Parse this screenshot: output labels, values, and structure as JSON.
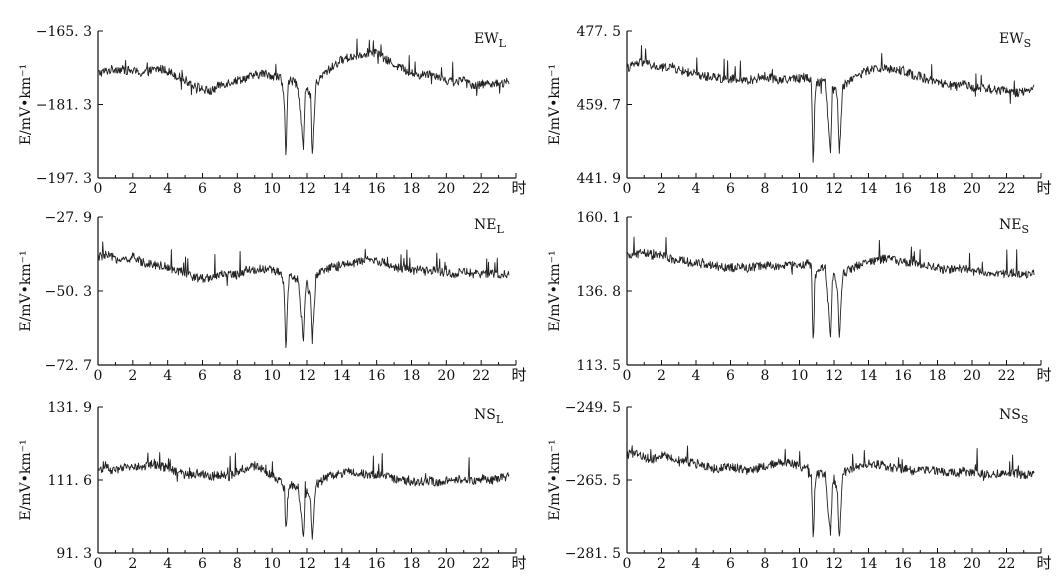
{
  "chart_data": [
    {
      "id": "ewl",
      "type": "line",
      "label": {
        "main": "EW",
        "sub": "L"
      },
      "ylabel": "E/mV•km⁻¹",
      "ylim": [
        -197.3,
        -165.3
      ],
      "yticks": [
        "−165. 3",
        "−181. 3",
        "−197. 3"
      ],
      "xlim": [
        0,
        24
      ],
      "xticks": [
        "0",
        "2",
        "4",
        "6",
        "8",
        "10",
        "12",
        "14",
        "16",
        "18",
        "20",
        "22"
      ],
      "xunit": "时",
      "series": [
        {
          "x": [
            0,
            0.5,
            1,
            1.5,
            2,
            2.5,
            3,
            3.5,
            4,
            4.5,
            5,
            5.5,
            6,
            6.5,
            7,
            7.5,
            8,
            8.5,
            9,
            9.5,
            10,
            10.5,
            10.7,
            10.8,
            10.9,
            11,
            11.5,
            11.8,
            11.9,
            12,
            12.2,
            12.3,
            12.5,
            13,
            13.5,
            14,
            14.5,
            15,
            15.5,
            16,
            16.5,
            17,
            17.5,
            18,
            18.5,
            19,
            19.5,
            20,
            20.5,
            21,
            21.5,
            22,
            22.5,
            23,
            23.5
          ],
          "y": [
            -174.5,
            -174,
            -173.5,
            -173.8,
            -174,
            -174.5,
            -174,
            -173.5,
            -174,
            -175,
            -176,
            -177,
            -178,
            -178.5,
            -177,
            -176.5,
            -176,
            -175.5,
            -175,
            -174.5,
            -175,
            -175.5,
            -180,
            -193,
            -178,
            -176,
            -177,
            -191,
            -179,
            -178,
            -180,
            -193,
            -177,
            -174.5,
            -173,
            -171.5,
            -171,
            -170.5,
            -170,
            -170,
            -171.5,
            -172.5,
            -173.5,
            -174.5,
            -175,
            -174.5,
            -175,
            -176,
            -176.5,
            -176,
            -177,
            -177,
            -176.5,
            -177,
            -176.5
          ]
        }
      ]
    },
    {
      "id": "ews",
      "type": "line",
      "label": {
        "main": "EW",
        "sub": "S"
      },
      "ylabel": "E/mV•km⁻¹",
      "ylim": [
        441.9,
        477.5
      ],
      "yticks": [
        "477. 5",
        "459. 7",
        "441. 9"
      ],
      "xlim": [
        0,
        24
      ],
      "xticks": [
        "0",
        "2",
        "4",
        "6",
        "8",
        "10",
        "12",
        "14",
        "16",
        "18",
        "20",
        "22"
      ],
      "xunit": "时",
      "series": [
        {
          "x": [
            0,
            0.5,
            1,
            1.5,
            2,
            2.5,
            3,
            3.5,
            4,
            4.5,
            5,
            5.5,
            6,
            6.5,
            7,
            7.5,
            8,
            8.5,
            9,
            9.5,
            10,
            10.5,
            10.7,
            10.8,
            10.9,
            11,
            11.5,
            11.8,
            11.9,
            12,
            12.2,
            12.3,
            12.5,
            13,
            13.5,
            14,
            14.5,
            15,
            15.5,
            16,
            16.5,
            17,
            17.5,
            18,
            18.5,
            19,
            19.5,
            20,
            20.5,
            21,
            21.5,
            22,
            22.5,
            23,
            23.5
          ],
          "y": [
            468.5,
            469.5,
            470,
            469,
            468.5,
            469,
            468,
            467.5,
            467,
            466.5,
            466.5,
            466,
            466,
            465.5,
            465.5,
            466,
            466.5,
            466,
            465.5,
            466,
            466,
            466.5,
            465,
            444,
            462,
            465,
            465.5,
            448,
            462,
            464,
            462,
            447,
            464,
            466,
            467,
            468,
            468.5,
            468.5,
            468,
            468,
            467,
            466.5,
            465.5,
            465,
            464.5,
            464,
            464.5,
            464,
            463.5,
            463.5,
            463,
            463,
            462.5,
            463,
            463.5
          ]
        }
      ]
    },
    {
      "id": "nel",
      "type": "line",
      "label": {
        "main": "NE",
        "sub": "L"
      },
      "ylabel": "E/mV•km⁻¹",
      "ylim": [
        -72.7,
        -27.9
      ],
      "yticks": [
        "−27. 9",
        "−50. 3",
        "−72. 7"
      ],
      "xlim": [
        0,
        24
      ],
      "xticks": [
        "0",
        "2",
        "4",
        "6",
        "8",
        "10",
        "12",
        "14",
        "16",
        "18",
        "20",
        "22"
      ],
      "xunit": "时",
      "series": [
        {
          "x": [
            0,
            0.5,
            1,
            1.5,
            2,
            2.5,
            3,
            3.5,
            4,
            4.5,
            5,
            5.5,
            6,
            6.5,
            7,
            7.5,
            8,
            8.5,
            9,
            9.5,
            10,
            10.5,
            10.7,
            10.8,
            10.9,
            11,
            11.5,
            11.8,
            11.9,
            12,
            12.2,
            12.3,
            12.5,
            13,
            13.5,
            14,
            14.5,
            15,
            15.5,
            16,
            16.5,
            17,
            17.5,
            18,
            18.5,
            19,
            19.5,
            20,
            20.5,
            21,
            21.5,
            22,
            22.5,
            23,
            23.5
          ],
          "y": [
            -40,
            -39.5,
            -40.5,
            -41,
            -40,
            -41.5,
            -42,
            -42.5,
            -43,
            -44,
            -45,
            -46,
            -46.5,
            -46,
            -45.5,
            -45,
            -45.5,
            -44,
            -44,
            -43.5,
            -44,
            -45,
            -49,
            -70,
            -52,
            -46,
            -47,
            -65,
            -51,
            -48,
            -52,
            -66,
            -46,
            -44,
            -43,
            -42.5,
            -42,
            -41.5,
            -41,
            -41,
            -42,
            -43,
            -43.5,
            -44,
            -44,
            -44.5,
            -44,
            -45,
            -45,
            -44.5,
            -45,
            -45.5,
            -45,
            -45.5,
            -45
          ]
        }
      ]
    },
    {
      "id": "nes",
      "type": "line",
      "label": {
        "main": "NE",
        "sub": "S"
      },
      "ylabel": "E/mV•km⁻¹",
      "ylim": [
        113.5,
        160.1
      ],
      "yticks": [
        "160. 1",
        "136. 8",
        "113. 5"
      ],
      "xlim": [
        0,
        24
      ],
      "xticks": [
        "0",
        "2",
        "4",
        "6",
        "8",
        "10",
        "12",
        "14",
        "16",
        "18",
        "20",
        "22"
      ],
      "xunit": "时",
      "series": [
        {
          "x": [
            0,
            0.5,
            1,
            1.5,
            2,
            2.5,
            3,
            3.5,
            4,
            4.5,
            5,
            5.5,
            6,
            6.5,
            7,
            7.5,
            8,
            8.5,
            9,
            9.5,
            10,
            10.5,
            10.7,
            10.8,
            10.9,
            11,
            11.5,
            11.8,
            11.9,
            12,
            12.2,
            12.3,
            12.5,
            13,
            13.5,
            14,
            14.5,
            15,
            15.5,
            16,
            16.5,
            17,
            17.5,
            18,
            18.5,
            19,
            19.5,
            20,
            20.5,
            21,
            21.5,
            22,
            22.5,
            23,
            23.5
          ],
          "y": [
            147.5,
            148.5,
            149,
            148,
            148,
            147,
            146.5,
            146,
            145.5,
            145,
            144.5,
            144.5,
            144,
            144.5,
            144,
            144.5,
            145,
            144.5,
            144.5,
            145,
            145,
            145.5,
            144,
            118,
            140,
            143.5,
            144,
            122,
            139,
            142,
            138,
            121,
            142,
            144,
            145,
            146,
            146.5,
            147,
            146.5,
            146,
            145.5,
            145,
            144.5,
            144,
            143.5,
            143.5,
            144,
            143,
            143,
            142.5,
            142.5,
            142,
            142.5,
            142,
            142.5
          ]
        }
      ]
    },
    {
      "id": "nsl",
      "type": "line",
      "label": {
        "main": "NS",
        "sub": "L"
      },
      "ylabel": "E/mV•km⁻¹",
      "ylim": [
        91.3,
        131.9
      ],
      "yticks": [
        "131. 9",
        "111. 6",
        "91. 3"
      ],
      "xlim": [
        0,
        24
      ],
      "xticks": [
        "0",
        "2",
        "4",
        "6",
        "8",
        "10",
        "12",
        "14",
        "16",
        "18",
        "20",
        "22"
      ],
      "xunit": "时",
      "series": [
        {
          "x": [
            0,
            0.5,
            1,
            1.5,
            2,
            2.5,
            3,
            3.5,
            4,
            4.5,
            5,
            5.5,
            6,
            6.5,
            7,
            7.5,
            8,
            8.5,
            9,
            9.5,
            10,
            10.5,
            10.7,
            10.8,
            10.9,
            11,
            11.5,
            11.8,
            11.9,
            12,
            12.2,
            12.3,
            12.5,
            13,
            13.5,
            14,
            14.5,
            15,
            15.5,
            16,
            16.5,
            17,
            17.5,
            18,
            18.5,
            19,
            19.5,
            20,
            20.5,
            21,
            21.5,
            22,
            22.5,
            23,
            23.5
          ],
          "y": [
            114.5,
            115,
            114,
            115,
            115.5,
            115,
            116,
            115.5,
            115,
            114,
            113,
            113,
            113.5,
            112.5,
            113,
            112.5,
            114,
            115,
            115.5,
            114.5,
            112.5,
            111.5,
            109,
            96,
            107,
            109.5,
            110,
            95,
            106,
            109,
            105,
            95,
            110,
            112,
            113,
            113.5,
            114,
            113.5,
            113,
            113,
            112.5,
            112,
            111.5,
            111,
            111,
            111.5,
            111,
            111.5,
            111.5,
            112,
            111.5,
            112,
            111.5,
            112,
            112.5
          ]
        }
      ]
    },
    {
      "id": "nss",
      "type": "line",
      "label": {
        "main": "NS",
        "sub": "S"
      },
      "ylabel": "E/mV•km⁻¹",
      "ylim": [
        -281.5,
        -249.5
      ],
      "yticks": [
        "−249. 5",
        "−265. 5",
        "−281. 5"
      ],
      "xlim": [
        0,
        24
      ],
      "xticks": [
        "0",
        "2",
        "4",
        "6",
        "8",
        "10",
        "12",
        "14",
        "16",
        "18",
        "20",
        "22"
      ],
      "xunit": "时",
      "series": [
        {
          "x": [
            0,
            0.5,
            1,
            1.5,
            2,
            2.5,
            3,
            3.5,
            4,
            4.5,
            5,
            5.5,
            6,
            6.5,
            7,
            7.5,
            8,
            8.5,
            9,
            9.5,
            10,
            10.5,
            10.7,
            10.8,
            10.9,
            11,
            11.5,
            11.8,
            11.9,
            12,
            12.2,
            12.3,
            12.5,
            13,
            13.5,
            14,
            14.5,
            15,
            15.5,
            16,
            16.5,
            17,
            17.5,
            18,
            18.5,
            19,
            19.5,
            20,
            20.5,
            21,
            21.5,
            22,
            22.5,
            23,
            23.5
          ],
          "y": [
            -260,
            -259.5,
            -260.5,
            -261,
            -260,
            -260.5,
            -261,
            -261.5,
            -262,
            -262.5,
            -263,
            -263,
            -262.5,
            -263,
            -263.5,
            -263,
            -262.5,
            -262,
            -261.5,
            -262,
            -262.5,
            -263,
            -265,
            -279,
            -267,
            -264,
            -264.5,
            -278,
            -268,
            -265,
            -268,
            -279,
            -264,
            -263,
            -262.5,
            -262,
            -262,
            -262.5,
            -263,
            -263,
            -263.5,
            -263.5,
            -263,
            -263.5,
            -264,
            -264,
            -263.5,
            -264,
            -264,
            -264.5,
            -264,
            -264.5,
            -264,
            -264.5,
            -264
          ]
        }
      ]
    }
  ]
}
